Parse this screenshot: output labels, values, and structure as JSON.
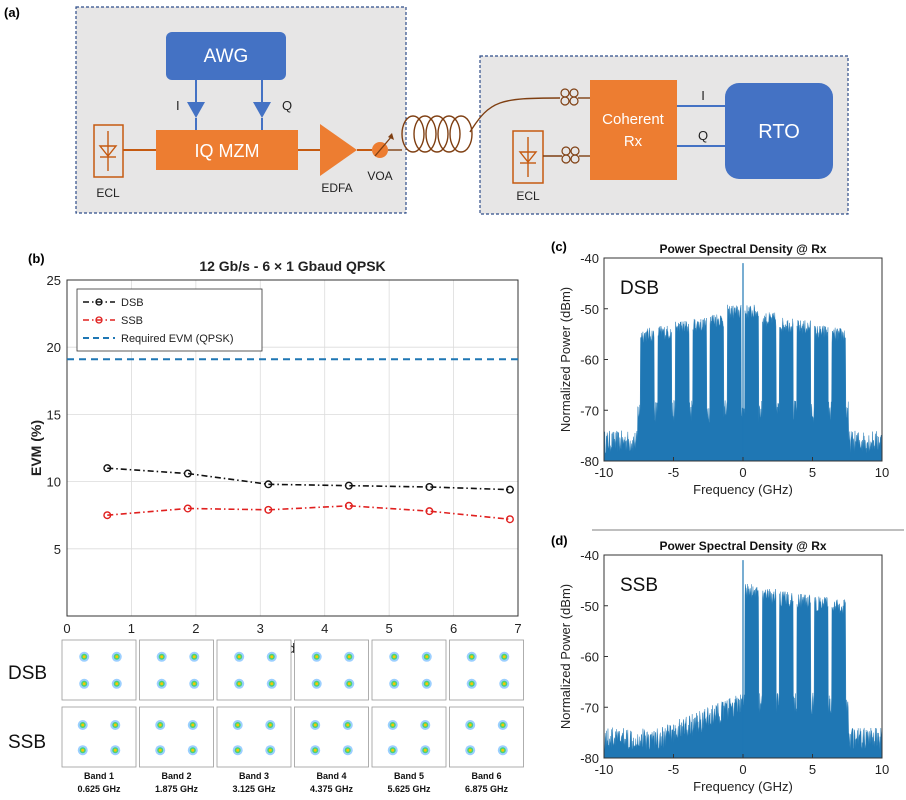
{
  "panels": {
    "a": "(a)",
    "b": "(b)",
    "c": "(c)",
    "d": "(d)"
  },
  "diagram_a": {
    "awg": "AWG",
    "i": "I",
    "q": "Q",
    "iq_mzm": "IQ MZM",
    "ecl_tx": "ECL",
    "edfa": "EDFA",
    "voa": "VOA",
    "coherent_rx_1": "Coherent",
    "coherent_rx_2": "Rx",
    "rx_i": "I",
    "rx_q": "Q",
    "rto": "RTO",
    "ecl_rx": "ECL",
    "colors": {
      "blue": "#4472C4",
      "orange": "#ED7D31",
      "panel": "#E7E6E6",
      "border": "#2F4E8A"
    }
  },
  "chart_data": [
    {
      "type": "line",
      "title": "12 Gb/s - 6 × 1 Gbaud QPSK",
      "xlabel": "Sub-band IF (GHz)",
      "ylabel": "EVM (%)",
      "xlim": [
        0,
        7
      ],
      "ylim": [
        0,
        25
      ],
      "xticks": [
        "0",
        "1",
        "2",
        "3",
        "4",
        "5",
        "6",
        "7"
      ],
      "yticks": [
        "5",
        "10",
        "15",
        "20",
        "25"
      ],
      "x": [
        0.625,
        1.875,
        3.125,
        4.375,
        5.625,
        6.875
      ],
      "series": [
        {
          "name": "DSB",
          "values": [
            11.0,
            10.6,
            9.8,
            9.7,
            9.6,
            9.4
          ],
          "color": "#111111"
        },
        {
          "name": "SSB",
          "values": [
            7.5,
            8.0,
            7.9,
            8.2,
            7.8,
            7.2
          ],
          "color": "#E0201F"
        }
      ],
      "threshold": {
        "name": "Required EVM (QPSK)",
        "value": 19.1,
        "color": "#1F77B4"
      },
      "grid": true,
      "legend": "top-left"
    },
    {
      "type": "area",
      "title": "Power Spectral Density @ Rx",
      "tag": "DSB",
      "xlabel": "Frequency (GHz)",
      "ylabel": "Normalized Power (dBm)",
      "xlim": [
        -10,
        10
      ],
      "ylim": [
        -80,
        -40
      ],
      "xticks": [
        "-10",
        "-5",
        "0",
        "5",
        "10"
      ],
      "yticks": [
        "-40",
        "-50",
        "-60",
        "-70",
        "-80"
      ],
      "color": "#1F77B4",
      "noise_floor_dBm": -77,
      "carrier_peak_dBm": -41,
      "subbands": [
        {
          "center": -6.875,
          "level": -55.5
        },
        {
          "center": -5.625,
          "level": -55
        },
        {
          "center": -4.375,
          "level": -54
        },
        {
          "center": -3.125,
          "level": -53.5
        },
        {
          "center": -1.875,
          "level": -52.5
        },
        {
          "center": -0.625,
          "level": -51
        },
        {
          "center": 0.625,
          "level": -51
        },
        {
          "center": 1.875,
          "level": -52.5
        },
        {
          "center": 3.125,
          "level": -53.5
        },
        {
          "center": 4.375,
          "level": -54
        },
        {
          "center": 5.625,
          "level": -55
        },
        {
          "center": 6.875,
          "level": -55.5
        }
      ]
    },
    {
      "type": "area",
      "title": "Power Spectral Density @ Rx",
      "tag": "SSB",
      "xlabel": "Frequency (GHz)",
      "ylabel": "Normalized Power (dBm)",
      "xlim": [
        -10,
        10
      ],
      "ylim": [
        -80,
        -40
      ],
      "xticks": [
        "-10",
        "-5",
        "0",
        "5",
        "10"
      ],
      "yticks": [
        "-40",
        "-50",
        "-60",
        "-70",
        "-80"
      ],
      "color": "#1F77B4",
      "noise_floor_dBm": -77,
      "carrier_peak_dBm": -41,
      "subbands": [
        {
          "center": 0.625,
          "level": -47.5
        },
        {
          "center": 1.875,
          "level": -48.5
        },
        {
          "center": 3.125,
          "level": -49
        },
        {
          "center": 4.375,
          "level": -49.5
        },
        {
          "center": 5.625,
          "level": -50
        },
        {
          "center": 6.875,
          "level": -50.5
        }
      ]
    }
  ],
  "constellations": {
    "rows": [
      "DSB",
      "SSB"
    ],
    "bands": [
      {
        "name": "Band 1",
        "freq": "0.625 GHz"
      },
      {
        "name": "Band 2",
        "freq": "1.875 GHz"
      },
      {
        "name": "Band 3",
        "freq": "3.125 GHz"
      },
      {
        "name": "Band 4",
        "freq": "4.375 GHz"
      },
      {
        "name": "Band 5",
        "freq": "5.625 GHz"
      },
      {
        "name": "Band 6",
        "freq": "6.875 GHz"
      }
    ]
  }
}
